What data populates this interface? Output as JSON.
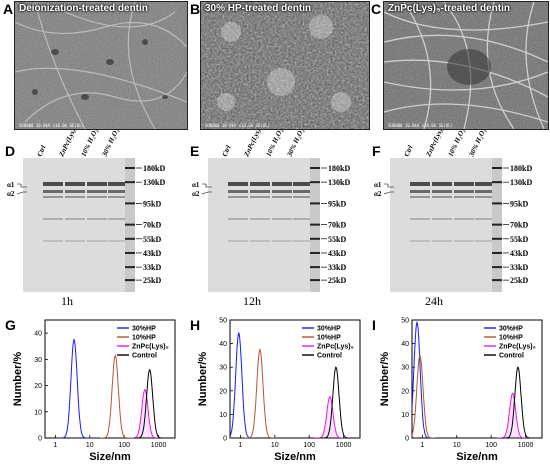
{
  "panels": {
    "A": {
      "letter": "A",
      "title": "Deionization-treated dentin",
      "footer": "SU8000 10.0kV x10.0k SE(UL)"
    },
    "B": {
      "letter": "B",
      "title": "30% HP-treated dentin",
      "footer": "SU8000 10.0kV x10.0k SE(UL)"
    },
    "C": {
      "letter": "C",
      "title": "ZnPc(Lys)₅-treated dentin",
      "footer": "SU8000 10.0kV x10.0k SE(UL)"
    }
  },
  "gels": [
    {
      "letter": "D",
      "time": "1h"
    },
    {
      "letter": "E",
      "time": "12h"
    },
    {
      "letter": "F",
      "time": "24h"
    }
  ],
  "gel_lanes": [
    "Ctrl",
    "ZnPc(Lys)₅",
    "10% H₂O₂",
    "30% H₂O₂"
  ],
  "gel_markers": [
    "180kD",
    "130kD",
    "95kD",
    "70kD",
    "55kD",
    "43kD",
    "33kD",
    "25kD"
  ],
  "gel_chains": [
    "α1",
    "α2"
  ],
  "chart_data": [
    {
      "type": "line",
      "panel": "G",
      "xlabel": "Size/nm",
      "ylabel": "Number/%",
      "xscale": "log",
      "xlim": [
        0.5,
        3000
      ],
      "ylim": [
        0,
        45
      ],
      "xticks": [
        1,
        10,
        100,
        1000
      ],
      "yticks": [
        0,
        10,
        20,
        30,
        40
      ],
      "legend": "top-right",
      "series": [
        {
          "name": "30%HP",
          "color": "#1a1aff",
          "peak_x": 3.5,
          "peak_y": 37.5
        },
        {
          "name": "10%HP",
          "color": "#b3592e",
          "peak_x": 55,
          "peak_y": 31.5
        },
        {
          "name": "ZnPc(Lys)₅",
          "color": "#e61ae6",
          "peak_x": 400,
          "peak_y": 18.5
        },
        {
          "name": "Control",
          "color": "#000000",
          "peak_x": 550,
          "peak_y": 26
        }
      ]
    },
    {
      "type": "line",
      "panel": "H",
      "xlabel": "Size/nm",
      "ylabel": "Number/%",
      "xscale": "log",
      "xlim": [
        0.5,
        3000
      ],
      "ylim": [
        0,
        50
      ],
      "xticks": [
        1,
        10,
        100,
        1000
      ],
      "yticks": [
        0,
        10,
        20,
        30,
        40,
        50
      ],
      "legend": "top-right",
      "series": [
        {
          "name": "30%HP",
          "color": "#1a1aff",
          "peak_x": 0.9,
          "peak_y": 44.5
        },
        {
          "name": "10%HP",
          "color": "#b3592e",
          "peak_x": 3.7,
          "peak_y": 37.5
        },
        {
          "name": "ZnPc(Lys)₅",
          "color": "#e61ae6",
          "peak_x": 400,
          "peak_y": 17.5
        },
        {
          "name": "Control",
          "color": "#000000",
          "peak_x": 600,
          "peak_y": 30
        }
      ]
    },
    {
      "type": "line",
      "panel": "I",
      "xlabel": "Size/nm",
      "ylabel": "Number/%",
      "xscale": "log",
      "xlim": [
        0.5,
        3000
      ],
      "ylim": [
        0,
        50
      ],
      "xticks": [
        1,
        10,
        100,
        1000
      ],
      "yticks": [
        0,
        10,
        20,
        30,
        40,
        50
      ],
      "legend": "top-right",
      "series": [
        {
          "name": "30%HP",
          "color": "#1a1aff",
          "peak_x": 0.7,
          "peak_y": 49
        },
        {
          "name": "10%HP",
          "color": "#b3592e",
          "peak_x": 0.85,
          "peak_y": 35
        },
        {
          "name": "ZnPc(Lys)₅",
          "color": "#e61ae6",
          "peak_x": 420,
          "peak_y": 19
        },
        {
          "name": "Control",
          "color": "#000000",
          "peak_x": 600,
          "peak_y": 30
        }
      ]
    }
  ]
}
